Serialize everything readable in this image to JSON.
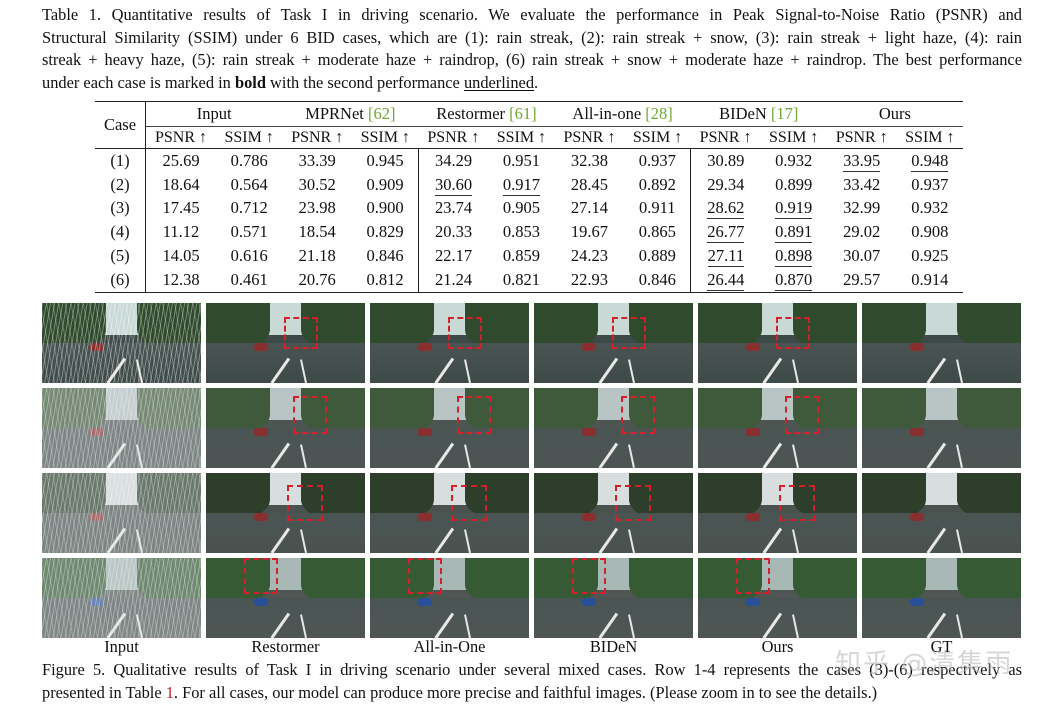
{
  "table_caption": {
    "lines": [
      "Table 1.  Quantitative results of Task I in driving scenario.  We evaluate the performance in Peak Signal-to-Noise Ratio (PSNR) and",
      "Structural Similarity (SSIM) under 6 BID cases, which are (1): rain streak, (2): rain streak + snow, (3): rain streak + light haze, (4): rain",
      "streak + heavy haze, (5): rain streak + moderate haze + raindrop, (6) rain streak + snow + moderate haze + raindrop. The best performance"
    ],
    "last_line_prefix": "under each case is marked in ",
    "bold_word": "bold",
    "last_line_middle": " with the second performance ",
    "underlined_word": "underlined",
    "last_line_suffix": "."
  },
  "table": {
    "case_header": "Case",
    "groups": [
      {
        "name": "Input",
        "cite": ""
      },
      {
        "name": "MPRNet ",
        "cite": "[62]"
      },
      {
        "name": "Restormer ",
        "cite": "[61]"
      },
      {
        "name": "All-in-one ",
        "cite": "[28]"
      },
      {
        "name": "BIDeN ",
        "cite": "[17]"
      },
      {
        "name": "Ours",
        "cite": ""
      }
    ],
    "metrics": [
      "PSNR ↑",
      "SSIM ↑"
    ],
    "rows": [
      {
        "case": "(1)",
        "values": [
          "25.69",
          "0.786",
          "33.39",
          "0.945",
          "34.29",
          "0.951",
          "32.38",
          "0.937",
          "30.89",
          "0.932",
          "33.95",
          "0.948"
        ],
        "best": [
          4,
          5
        ],
        "second": [
          10,
          11
        ]
      },
      {
        "case": "(2)",
        "values": [
          "18.64",
          "0.564",
          "30.52",
          "0.909",
          "30.60",
          "0.917",
          "28.45",
          "0.892",
          "29.34",
          "0.899",
          "33.42",
          "0.937"
        ],
        "best": [
          10,
          11
        ],
        "second": [
          4,
          5
        ]
      },
      {
        "case": "(3)",
        "values": [
          "17.45",
          "0.712",
          "23.98",
          "0.900",
          "23.74",
          "0.905",
          "27.14",
          "0.911",
          "28.62",
          "0.919",
          "32.99",
          "0.932"
        ],
        "best": [
          10,
          11
        ],
        "second": [
          8,
          9
        ]
      },
      {
        "case": "(4)",
        "values": [
          "11.12",
          "0.571",
          "18.54",
          "0.829",
          "20.33",
          "0.853",
          "19.67",
          "0.865",
          "26.77",
          "0.891",
          "29.02",
          "0.908"
        ],
        "best": [
          10,
          11
        ],
        "second": [
          8,
          9
        ]
      },
      {
        "case": "(5)",
        "values": [
          "14.05",
          "0.616",
          "21.18",
          "0.846",
          "22.17",
          "0.859",
          "24.23",
          "0.889",
          "27.11",
          "0.898",
          "30.07",
          "0.925"
        ],
        "best": [
          10,
          11
        ],
        "second": [
          8,
          9
        ]
      },
      {
        "case": "(6)",
        "values": [
          "12.38",
          "0.461",
          "20.76",
          "0.812",
          "21.24",
          "0.821",
          "22.93",
          "0.846",
          "26.44",
          "0.870",
          "29.57",
          "0.914"
        ],
        "best": [
          10,
          11
        ],
        "second": [
          8,
          9
        ]
      }
    ]
  },
  "figure": {
    "column_labels": [
      "Input",
      "Restormer",
      "All-in-One",
      "BIDeN",
      "Ours",
      "GT"
    ],
    "rows": 4,
    "highlight_color": "#d4202a",
    "caption_line1": "Figure 5. Qualitative results of Task I in driving scenario under several mixed cases. Row 1-4 represents the cases (3)-(6) respectively as",
    "caption_line2_prefix": "presented in Table ",
    "caption_line2_ref": "1",
    "caption_line2_suffix": ". For all cases, our model can produce more precise and faithful images. (Please zoom in to see the details.)"
  },
  "watermark": "知乎 @清集雨",
  "colors": {
    "citation": "#6fa832",
    "reference": "#c4202e"
  }
}
